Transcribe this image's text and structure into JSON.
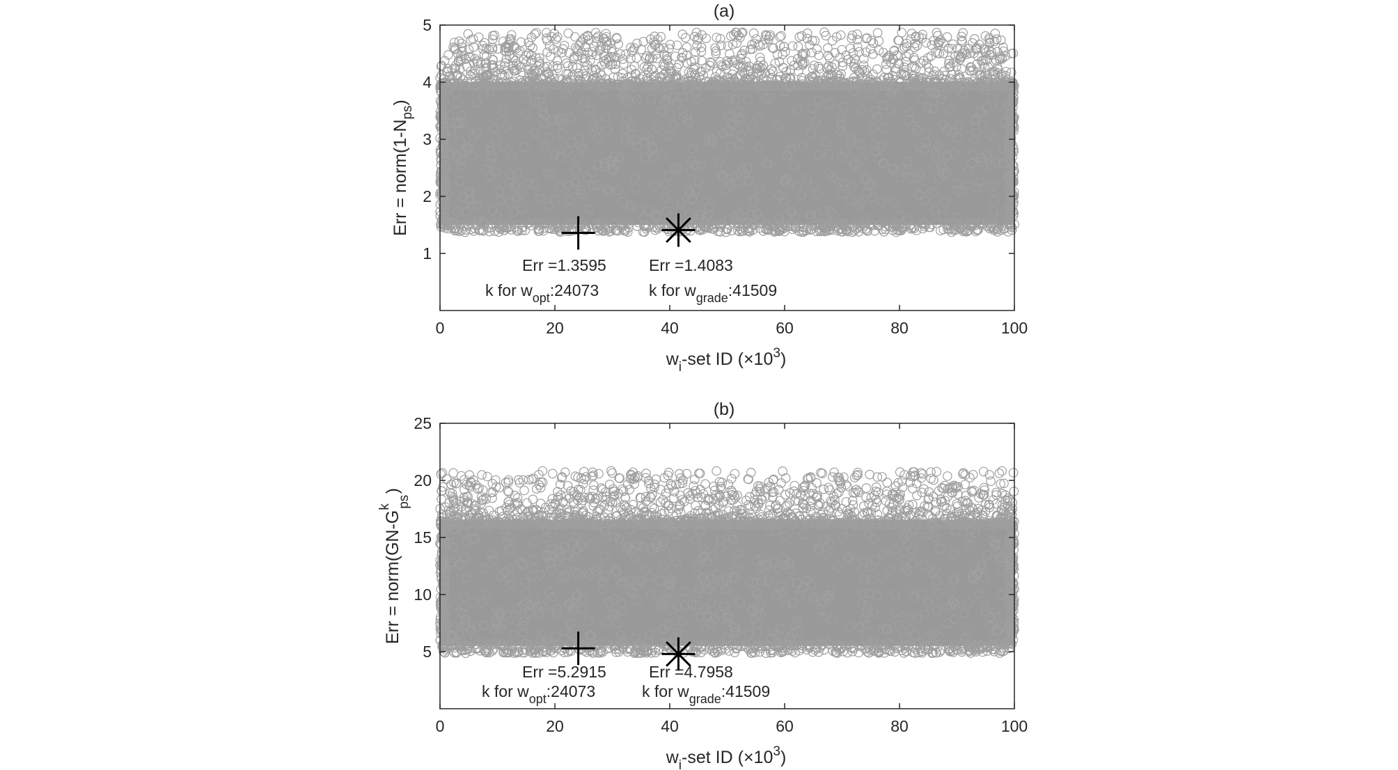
{
  "chart_data": [
    {
      "panel": "a",
      "type": "scatter",
      "title": "(a)",
      "xlabel": "w",
      "xlabel_sub": "i",
      "xlabel_rest": "-set ID (",
      "xlabel_times": "×",
      "xlabel_base": "10",
      "xlabel_exp": "3",
      "xlabel_close": ")",
      "ylabel": "Err = norm(1-N",
      "ylabel_sub": "ps",
      "ylabel_close": ")",
      "xlim": [
        0,
        100
      ],
      "ylim": [
        0.0,
        5.0
      ],
      "xticks": [
        0,
        20,
        40,
        60,
        80,
        100
      ],
      "yticks": [
        1,
        2,
        3,
        4,
        5
      ],
      "xtick_labels": [
        "0",
        "20",
        "40",
        "60",
        "80",
        "100"
      ],
      "ytick_labels": [
        "1",
        "2",
        "3",
        "4",
        "5"
      ],
      "marker_color": "#999999",
      "grid": false,
      "scatter_band": {
        "x_range": [
          0,
          100
        ],
        "dense_y_range": [
          1.5,
          4.0
        ],
        "sparse_y_max": 4.95
      },
      "series": [
        {
          "marker": "circle",
          "n_points": 100000
        }
      ],
      "markers": [
        {
          "symbol": "plus",
          "x": 24.073,
          "y": 1.3595
        },
        {
          "symbol": "asterisk",
          "x": 41.509,
          "y": 1.4083
        }
      ],
      "annotations": [
        {
          "err_text": "Err =1.3595",
          "k_text": "k for w",
          "k_sub": "opt",
          "k_value": ":24073"
        },
        {
          "err_text": "Err =1.4083",
          "k_text": "k for w",
          "k_sub": "grade",
          "k_value": ":41509"
        }
      ]
    },
    {
      "panel": "b",
      "type": "scatter",
      "title": "(b)",
      "xlabel": "w",
      "xlabel_sub": "i",
      "xlabel_rest": "-set ID (",
      "xlabel_times": "×",
      "xlabel_base": "10",
      "xlabel_exp": "3",
      "xlabel_close": ")",
      "ylabel": "Err = norm(GN-G",
      "ylabel_sup": "k",
      "ylabel_sub": "ps",
      "ylabel_close": ")",
      "xlim": [
        0,
        100
      ],
      "ylim": [
        0,
        25
      ],
      "xticks": [
        0,
        20,
        40,
        60,
        80,
        100
      ],
      "yticks": [
        5,
        10,
        15,
        20,
        25
      ],
      "xtick_labels": [
        "0",
        "20",
        "40",
        "60",
        "80",
        "100"
      ],
      "ytick_labels": [
        "5",
        "10",
        "15",
        "20",
        "25"
      ],
      "marker_color": "#999999",
      "grid": false,
      "scatter_band": {
        "x_range": [
          0,
          100
        ],
        "dense_y_range": [
          5.5,
          16.5
        ],
        "sparse_y_max": 21.2
      },
      "series": [
        {
          "marker": "circle",
          "n_points": 100000
        }
      ],
      "markers": [
        {
          "symbol": "plus",
          "x": 24.073,
          "y": 5.2915
        },
        {
          "symbol": "asterisk",
          "x": 41.509,
          "y": 4.7958
        }
      ],
      "annotations": [
        {
          "err_text": "Err =5.2915",
          "k_text": "k for w",
          "k_sub": "opt",
          "k_value": ":24073"
        },
        {
          "err_text": "Err =4.7958",
          "k_text": "k for w",
          "k_sub": "grade",
          "k_value": ":41509"
        }
      ]
    }
  ]
}
